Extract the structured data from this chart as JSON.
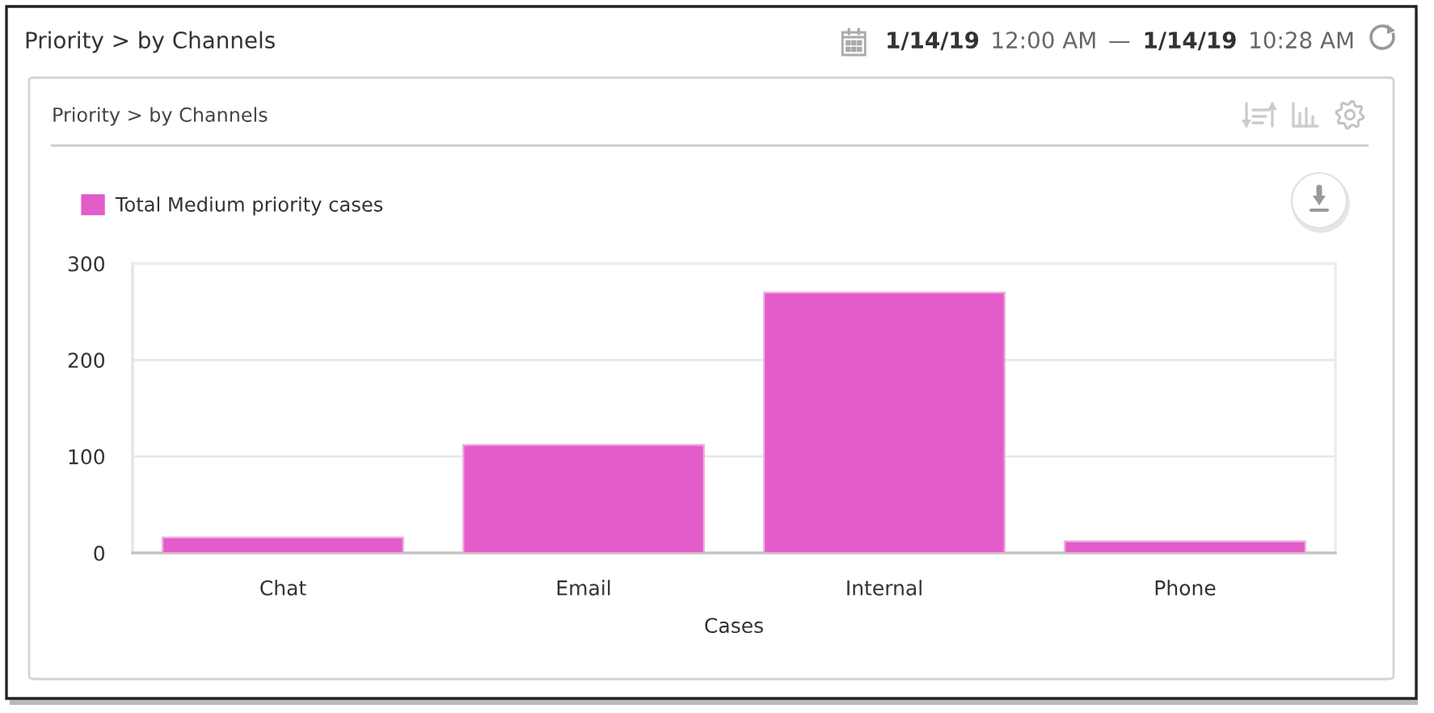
{
  "chart_data": {
    "type": "bar",
    "title": "Priority > by Channels",
    "subtitle": "Priority > by Channels",
    "xlabel": "Cases",
    "categories": [
      "Chat",
      "Email",
      "Internal",
      "Phone"
    ],
    "series": [
      {
        "name": "Total Medium priority cases",
        "color": "#e25dc9",
        "values": [
          16,
          112,
          270,
          12
        ]
      }
    ],
    "ylim": [
      0,
      300
    ],
    "yticks": [
      0,
      100,
      200,
      300
    ],
    "grid": "y",
    "legend": "top left",
    "annotations": [
      "1/14/19",
      "12:00 AM",
      "—",
      "1/14/19",
      "10:28 AM"
    ]
  }
}
